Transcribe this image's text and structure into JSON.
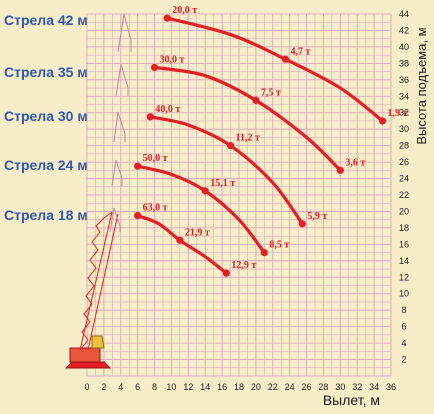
{
  "chart_data": {
    "type": "line",
    "xlabel": "Вылет, м",
    "ylabel": "Высота подъема, м",
    "xlim": [
      0,
      36
    ],
    "ylim": [
      0,
      44
    ],
    "x_ticks": [
      0,
      2,
      4,
      6,
      8,
      10,
      12,
      14,
      16,
      18,
      20,
      22,
      24,
      26,
      28,
      30,
      32,
      34,
      36
    ],
    "x_tick_labels": [
      "0",
      "2",
      "4",
      "6",
      "8",
      "10",
      "12",
      "14",
      "16",
      "18",
      "20",
      "22",
      "24",
      "26",
      "28",
      "30",
      "32",
      "34",
      "36"
    ],
    "y_ticks": [
      2,
      4,
      6,
      8,
      10,
      12,
      14,
      16,
      18,
      20,
      22,
      24,
      26,
      28,
      30,
      32,
      34,
      36,
      38,
      40,
      42,
      44
    ],
    "y_tick_labels": [
      "2",
      "4",
      "6",
      "8",
      "10",
      "12",
      "14",
      "16",
      "18",
      "20",
      "22",
      "24",
      "26",
      "28",
      "30",
      "32",
      "34",
      "36",
      "38",
      "40",
      "42",
      "44"
    ],
    "grid": true,
    "colors": {
      "curve": "#e31e24",
      "grid": "#d9a0bf",
      "label": "#2f57b3",
      "axis_text": "#222222"
    },
    "series": [
      {
        "name": "Стрела 42 м",
        "x": [
          9.5,
          17,
          23.5,
          30,
          35
        ],
        "y": [
          43.5,
          41.5,
          38.5,
          35,
          31
        ],
        "labelled_points": [
          {
            "x": 9.5,
            "y": 43.5,
            "label": "20,0 т"
          },
          {
            "x": 23.5,
            "y": 38.5,
            "label": "4,7 т"
          },
          {
            "x": 35,
            "y": 31,
            "label": "1,9 т"
          }
        ]
      },
      {
        "name": "Стрела 35 м",
        "x": [
          8,
          14,
          20,
          26,
          30
        ],
        "y": [
          37.5,
          36.5,
          33.5,
          29,
          25
        ],
        "labelled_points": [
          {
            "x": 8,
            "y": 37.5,
            "label": "30,0 т"
          },
          {
            "x": 20,
            "y": 33.5,
            "label": "7,5 т"
          },
          {
            "x": 30,
            "y": 25,
            "label": "3,6 т"
          }
        ]
      },
      {
        "name": "Стрела 30 м",
        "x": [
          7.5,
          12,
          17,
          22,
          25.5
        ],
        "y": [
          31.5,
          30.5,
          28,
          23.5,
          18.5
        ],
        "labelled_points": [
          {
            "x": 7.5,
            "y": 31.5,
            "label": "40,0 т"
          },
          {
            "x": 17,
            "y": 28,
            "label": "11,2 т"
          },
          {
            "x": 25.5,
            "y": 18.5,
            "label": "5,9 т"
          }
        ]
      },
      {
        "name": "Стрела 24 м",
        "x": [
          6,
          10,
          14,
          18,
          21
        ],
        "y": [
          25.5,
          24.5,
          22.5,
          19,
          15
        ],
        "labelled_points": [
          {
            "x": 6,
            "y": 25.5,
            "label": "50,0 т"
          },
          {
            "x": 14,
            "y": 22.5,
            "label": "15,1 т"
          },
          {
            "x": 21,
            "y": 15,
            "label": "8,5 т"
          }
        ]
      },
      {
        "name": "Стрела 18 м",
        "x": [
          6,
          8.5,
          11,
          14,
          16.5
        ],
        "y": [
          19.5,
          18.5,
          16.5,
          14.5,
          12.5
        ],
        "labelled_points": [
          {
            "x": 6,
            "y": 19.5,
            "label": "63,0 т"
          },
          {
            "x": 11,
            "y": 16.5,
            "label": "21,9 т"
          },
          {
            "x": 16.5,
            "y": 12.5,
            "label": "12,9 т"
          }
        ]
      }
    ]
  }
}
